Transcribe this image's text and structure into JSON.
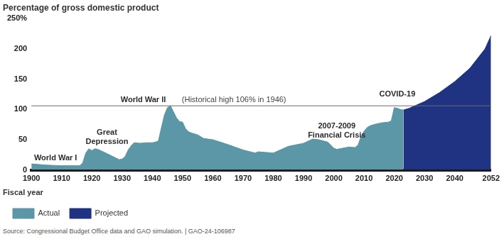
{
  "chart_data": {
    "type": "area",
    "title": "Percentage of gross domestic product",
    "x_label": "Fiscal year",
    "source": "Source: Congressional Budget Office data and GAO simulation. | GAO-24-106987",
    "x": [
      1900,
      1905,
      1910,
      1915,
      1916,
      1917,
      1918,
      1919,
      1920,
      1921,
      1922,
      1925,
      1929,
      1930,
      1931,
      1932,
      1933,
      1934,
      1936,
      1938,
      1940,
      1941,
      1942,
      1943,
      1944,
      1945,
      1946,
      1947,
      1948,
      1949,
      1950,
      1951,
      1952,
      1953,
      1955,
      1957,
      1960,
      1965,
      1970,
      1974,
      1975,
      1980,
      1985,
      1990,
      1993,
      1995,
      1998,
      2000,
      2001,
      2005,
      2007,
      2008,
      2009,
      2010,
      2011,
      2012,
      2014,
      2016,
      2018,
      2019,
      2020,
      2021,
      2022,
      2023,
      2025,
      2030,
      2035,
      2040,
      2045,
      2050,
      2052
    ],
    "series": [
      {
        "name": "Actual",
        "color": "#5b97a6",
        "values": [
          10,
          8,
          7,
          7,
          7,
          12,
          28,
          35,
          32,
          35,
          34,
          27,
          17,
          18,
          22,
          33,
          40,
          45,
          44,
          45,
          45,
          46,
          48,
          70,
          91,
          103,
          106,
          96,
          86,
          80,
          79,
          68,
          63,
          61,
          58,
          52,
          50,
          42,
          33,
          28,
          30,
          28,
          39,
          44,
          51,
          50,
          46,
          36,
          34,
          38,
          37,
          41,
          55,
          64,
          70,
          73,
          76,
          78,
          79,
          81,
          103,
          102,
          100,
          99,
          null,
          null,
          null,
          null,
          null,
          null,
          null
        ]
      },
      {
        "name": "Projected",
        "color": "#1f3382",
        "values": [
          null,
          null,
          null,
          null,
          null,
          null,
          null,
          null,
          null,
          null,
          null,
          null,
          null,
          null,
          null,
          null,
          null,
          null,
          null,
          null,
          null,
          null,
          null,
          null,
          null,
          null,
          null,
          null,
          null,
          null,
          null,
          null,
          null,
          null,
          null,
          null,
          null,
          null,
          null,
          null,
          null,
          null,
          null,
          null,
          null,
          null,
          null,
          null,
          null,
          null,
          null,
          null,
          null,
          null,
          null,
          null,
          null,
          null,
          null,
          null,
          null,
          null,
          null,
          99,
          102,
          113,
          128,
          146,
          168,
          200,
          222
        ]
      }
    ],
    "xlim": [
      1900,
      2052
    ],
    "xticks": [
      1900,
      1910,
      1920,
      1930,
      1940,
      1950,
      1960,
      1970,
      1980,
      1990,
      2000,
      2010,
      2020,
      2030,
      2040,
      2052
    ],
    "ylim": [
      0,
      250
    ],
    "yticks": [
      0,
      50,
      100,
      150,
      200,
      {
        "value": 250,
        "label": "250%"
      }
    ],
    "grid": false,
    "legend": "bottom-left",
    "reference_line": {
      "value": 106
    },
    "annotations": [
      {
        "text": "World War I",
        "x": 1908,
        "y": 20
      },
      {
        "text": "Great\nDepression",
        "x": 1925,
        "y": 62
      },
      {
        "text": "World War II",
        "x": 1937,
        "y": 116
      },
      {
        "text": "(Historical high 106% in 1946)",
        "x": 1967,
        "y": 116
      },
      {
        "text": "2007-2009\nFinancial Crisis",
        "x": 2001,
        "y": 72
      },
      {
        "text": "COVID-19",
        "x": 2021,
        "y": 125
      }
    ]
  }
}
